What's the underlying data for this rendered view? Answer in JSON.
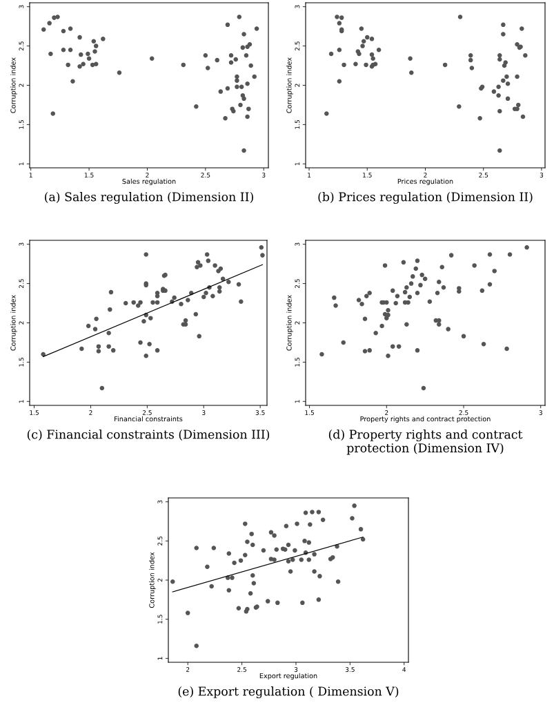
{
  "chart_data": [
    {
      "type": "scatter",
      "title": "(a) Sales regulation (Dimension II)",
      "xlabel": "Sales regulation",
      "ylabel": "Corruption index",
      "xlim": [
        0.99,
        3.04
      ],
      "ylim": [
        0.95,
        3.05
      ],
      "xticks": [
        1,
        1.5,
        2,
        2.5,
        3
      ],
      "yticks": [
        1,
        1.5,
        2,
        2.5,
        3
      ],
      "grid": false,
      "legend": false,
      "marker": "circle",
      "series": [
        {
          "color": "#555555",
          "x": [
            1.11,
            1.16,
            1.2,
            1.23,
            1.17,
            1.19,
            1.28,
            1.28,
            1.34,
            1.34,
            1.32,
            1.36,
            1.42,
            1.43,
            1.42,
            1.45,
            1.49,
            1.5,
            1.54,
            1.56,
            1.55,
            1.53,
            1.56,
            1.62,
            1.76,
            2.04,
            2.31,
            2.42,
            2.5,
            2.52,
            2.6,
            2.63,
            2.69,
            2.69,
            2.67,
            2.72,
            2.72,
            2.73,
            2.74,
            2.76,
            2.77,
            2.77,
            2.77,
            2.79,
            2.8,
            2.81,
            2.82,
            2.83,
            2.83,
            2.82,
            2.85,
            2.86,
            2.88,
            2.86,
            2.87,
            2.86,
            2.89,
            2.92,
            2.94,
            2.83
          ],
          "values": [
            2.71,
            2.79,
            2.86,
            2.87,
            2.4,
            1.64,
            2.69,
            2.45,
            2.45,
            2.72,
            2.26,
            2.05,
            2.61,
            2.39,
            2.24,
            2.27,
            2.4,
            2.34,
            2.56,
            2.5,
            2.43,
            2.26,
            2.27,
            2.59,
            2.16,
            2.34,
            2.26,
            1.73,
            2.38,
            2.22,
            2.32,
            1.92,
            2.77,
            1.96,
            1.58,
            2.38,
            2.29,
            1.7,
            1.67,
            2.33,
            2.11,
            2.06,
            1.98,
            2.87,
            1.75,
            1.98,
            1.87,
            1.83,
            2.65,
            2.48,
            2.38,
            2.49,
            2.52,
            2.02,
            1.7,
            1.6,
            2.25,
            2.11,
            2.72,
            1.17
          ]
        }
      ]
    },
    {
      "type": "scatter",
      "title": "(b) Prices regulation (Dimension II)",
      "xlabel": "Prices regulation",
      "ylabel": "Corruption index",
      "xlim": [
        0.97,
        3.03
      ],
      "ylim": [
        0.95,
        3.05
      ],
      "xticks": [
        1,
        1.5,
        2,
        2.5,
        3
      ],
      "yticks": [
        1,
        1.5,
        2,
        2.5,
        3
      ],
      "grid": false,
      "legend": false,
      "marker": "circle",
      "series": [
        {
          "color": "#555555",
          "x": [
            1.24,
            1.28,
            1.26,
            1.28,
            1.28,
            1.19,
            1.26,
            1.26,
            1.15,
            1.3,
            1.4,
            1.45,
            1.42,
            1.43,
            1.46,
            1.47,
            1.5,
            1.54,
            1.49,
            1.54,
            1.55,
            1.54,
            1.55,
            1.57,
            1.6,
            1.87,
            1.88,
            2.17,
            2.3,
            2.29,
            2.39,
            2.39,
            2.4,
            2.47,
            2.48,
            2.49,
            2.59,
            2.63,
            2.63,
            2.64,
            2.64,
            2.64,
            2.64,
            2.67,
            2.67,
            2.67,
            2.68,
            2.69,
            2.7,
            2.71,
            2.71,
            2.77,
            2.79,
            2.79,
            2.79,
            2.81,
            2.82,
            2.8,
            2.83,
            2.84,
            2.86
          ],
          "values": [
            2.87,
            2.86,
            2.79,
            2.71,
            2.69,
            2.4,
            2.45,
            2.05,
            1.64,
            2.26,
            2.27,
            2.72,
            2.43,
            2.4,
            2.5,
            2.56,
            2.61,
            2.59,
            2.26,
            2.39,
            2.34,
            2.24,
            2.26,
            2.27,
            2.45,
            2.34,
            2.16,
            2.26,
            2.87,
            1.73,
            2.38,
            2.32,
            2.22,
            1.58,
            1.96,
            1.98,
            1.92,
            1.87,
            1.98,
            2.38,
            2.33,
            1.67,
            1.17,
            2.77,
            2.65,
            2.06,
            2.25,
            2.29,
            2.11,
            2.02,
            1.83,
            1.7,
            1.7,
            2.52,
            2.11,
            2.48,
            2.49,
            1.75,
            2.72,
            1.6,
            2.38
          ]
        }
      ]
    },
    {
      "type": "scatter",
      "title": "(c) Financial constraints (Dimension III)",
      "xlabel": "Financial constraints",
      "ylabel": "Corruption index",
      "xlim": [
        1.46,
        3.56
      ],
      "ylim": [
        0.95,
        3.05
      ],
      "xticks": [
        1.5,
        2,
        2.5,
        3,
        3.5
      ],
      "yticks": [
        1,
        1.5,
        2,
        2.5,
        3
      ],
      "grid": false,
      "legend": false,
      "marker": "circle",
      "series": [
        {
          "color": "#555555",
          "x": [
            1.58,
            1.92,
            1.98,
            2.04,
            2.05,
            2.07,
            2.07,
            2.1,
            2.16,
            2.16,
            2.17,
            2.18,
            2.2,
            2.31,
            2.38,
            2.42,
            2.44,
            2.44,
            2.47,
            2.49,
            2.49,
            2.49,
            2.49,
            2.49,
            2.52,
            2.53,
            2.55,
            2.59,
            2.59,
            2.59,
            2.59,
            2.64,
            2.64,
            2.66,
            2.65,
            2.66,
            2.72,
            2.74,
            2.8,
            2.82,
            2.84,
            2.84,
            2.86,
            2.89,
            2.93,
            2.94,
            2.95,
            2.97,
            2.96,
            3.0,
            3.02,
            3.03,
            3.04,
            3.05,
            3.08,
            3.1,
            3.13,
            3.14,
            3.14,
            3.15,
            3.17,
            3.22,
            3.31,
            3.33,
            3.51,
            3.52
          ],
          "values": [
            1.6,
            1.67,
            1.96,
            1.92,
            2.05,
            1.7,
            1.64,
            1.17,
            1.87,
            1.7,
            2.17,
            2.39,
            1.65,
            2.25,
            2.26,
            2.22,
            2.26,
            1.75,
            2.02,
            2.87,
            2.5,
            2.48,
            2.1,
            1.58,
            1.73,
            2.06,
            2.26,
            2.38,
            2.34,
            2.26,
            1.65,
            2.43,
            2.41,
            2.41,
            2.6,
            2.61,
            2.27,
            2.32,
            2.24,
            1.98,
            1.98,
            2.03,
            2.29,
            2.38,
            2.11,
            2.71,
            2.77,
            2.73,
            1.83,
            2.33,
            2.38,
            2.87,
            2.79,
            2.45,
            2.34,
            2.73,
            2.66,
            2.45,
            2.4,
            2.69,
            2.56,
            2.52,
            2.49,
            2.27,
            2.96,
            2.86
          ]
        },
        {
          "type": "line",
          "color": "#000000",
          "marker": "none",
          "x": [
            1.58,
            3.52
          ],
          "values": [
            1.57,
            2.74
          ]
        }
      ]
    },
    {
      "type": "scatter",
      "title": "(d) Property rights and contract protection (Dimension IV)",
      "xlabel": "Property rights and contract protection",
      "ylabel": "Corruption index",
      "xlim": [
        1.475,
        3.028
      ],
      "ylim": [
        0.95,
        3.05
      ],
      "xticks": [
        1.5,
        2,
        2.5,
        3
      ],
      "yticks": [
        1,
        1.5,
        2,
        2.5,
        3
      ],
      "grid": false,
      "legend": false,
      "marker": "circle",
      "series": [
        {
          "color": "#555555",
          "x": [
            1.58,
            1.66,
            1.67,
            1.72,
            1.82,
            1.84,
            1.87,
            1.89,
            1.86,
            1.86,
            1.89,
            1.93,
            1.97,
            1.97,
            1.98,
            1.99,
            1.99,
            2.0,
            2.0,
            2.01,
            2.01,
            2.01,
            2.04,
            2.04,
            2.06,
            2.07,
            2.08,
            2.11,
            2.12,
            2.13,
            2.12,
            2.14,
            2.13,
            2.15,
            2.16,
            2.17,
            2.19,
            2.2,
            2.2,
            2.2,
            2.22,
            2.23,
            2.25,
            2.24,
            2.28,
            2.32,
            2.34,
            2.34,
            2.34,
            2.33,
            2.36,
            2.37,
            2.4,
            2.42,
            2.47,
            2.47,
            2.5,
            2.57,
            2.62,
            2.63,
            2.67,
            2.67,
            2.7,
            2.78,
            2.8,
            2.91
          ],
          "values": [
            1.6,
            2.32,
            2.22,
            1.75,
            2.29,
            2.24,
            2.34,
            2.38,
            2.05,
            1.64,
            1.65,
            1.87,
            1.96,
            2.26,
            2.26,
            2.73,
            2.11,
            2.06,
            2.26,
            2.1,
            1.58,
            2.16,
            1.7,
            2.41,
            2.25,
            2.34,
            1.7,
            2.77,
            2.39,
            2.45,
            2.26,
            2.26,
            1.98,
            2.33,
            2.5,
            2.59,
            2.69,
            2.79,
            2.38,
            1.65,
            2.48,
            2.61,
            2.56,
            1.17,
            2.27,
            2.03,
            2.03,
            1.98,
            2.52,
            2.38,
            2.71,
            2.45,
            1.92,
            2.86,
            2.44,
            2.4,
            1.83,
            2.73,
            2.41,
            1.73,
            2.87,
            2.49,
            2.66,
            1.67,
            2.87,
            2.96
          ]
        }
      ]
    },
    {
      "type": "scatter",
      "title": "(e) Export regulation ( Dimension V)",
      "xlabel": "Export regulation",
      "ylabel": "Corruption index",
      "xlim": [
        1.82,
        4.04
      ],
      "ylim": [
        0.95,
        3.05
      ],
      "xticks": [
        2,
        2.5,
        3,
        3.5,
        4
      ],
      "yticks": [
        1,
        1.5,
        2,
        2.5,
        3
      ],
      "grid": false,
      "legend": false,
      "marker": "circle",
      "series": [
        {
          "color": "#555555",
          "x": [
            1.86,
            2.0,
            2.08,
            2.08,
            2.18,
            2.22,
            2.24,
            2.37,
            2.38,
            2.38,
            2.41,
            2.43,
            2.47,
            2.49,
            2.53,
            2.53,
            2.54,
            2.55,
            2.55,
            2.58,
            2.59,
            2.6,
            2.6,
            2.61,
            2.63,
            2.64,
            2.7,
            2.74,
            2.77,
            2.77,
            2.8,
            2.8,
            2.82,
            2.83,
            2.88,
            2.9,
            2.91,
            2.93,
            2.93,
            2.95,
            2.97,
            2.99,
            3.01,
            3.05,
            3.06,
            3.08,
            3.09,
            3.09,
            3.12,
            3.12,
            3.13,
            3.15,
            3.17,
            3.17,
            3.21,
            3.21,
            3.22,
            3.25,
            3.32,
            3.34,
            3.38,
            3.39,
            3.52,
            3.54,
            3.6,
            3.62
          ],
          "values": [
            1.98,
            1.58,
            2.41,
            1.16,
            2.17,
            1.92,
            2.41,
            2.03,
            2.34,
            1.87,
            2.03,
            2.22,
            1.64,
            2.25,
            2.72,
            2.32,
            1.6,
            1.63,
            2.49,
            1.83,
            2.59,
            2.45,
            2.06,
            1.96,
            1.65,
            1.66,
            2.38,
            1.73,
            2.61,
            2.27,
            2.57,
            2.26,
            2.39,
            1.71,
            2.4,
            2.39,
            2.69,
            2.45,
            2.24,
            2.11,
            2.26,
            2.38,
            2.72,
            2.26,
            1.71,
            2.5,
            2.35,
            2.86,
            2.48,
            2.26,
            2.71,
            2.87,
            2.11,
            2.33,
            2.87,
            1.75,
            2.05,
            2.77,
            2.27,
            2.29,
            2.43,
            1.98,
            2.79,
            2.95,
            2.65,
            2.52
          ]
        },
        {
          "type": "line",
          "color": "#000000",
          "marker": "none",
          "x": [
            1.86,
            3.62
          ],
          "values": [
            1.85,
            2.55
          ]
        }
      ]
    }
  ]
}
